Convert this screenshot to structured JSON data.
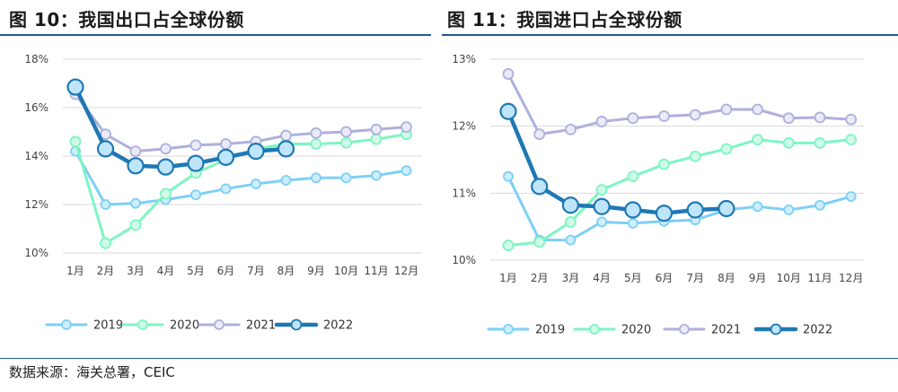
{
  "source": "数据来源：海关总署，CEIC",
  "colors": {
    "2019": "#7ecff5",
    "2020": "#7ef5c2",
    "2021": "#aeb0dc",
    "2022": "#1f78b4",
    "rule": "#1f5a99"
  },
  "chart_data": [
    {
      "type": "line",
      "title": "图 10：我国出口占全球份额",
      "categories": [
        "1月",
        "2月",
        "3月",
        "4月",
        "5月",
        "6月",
        "7月",
        "8月",
        "9月",
        "10月",
        "11月",
        "12月"
      ],
      "ylim": [
        10,
        18
      ],
      "yticks": [
        10,
        12,
        14,
        16,
        18
      ],
      "ytick_labels": [
        "10%",
        "12%",
        "14%",
        "16%",
        "18%"
      ],
      "grid": true,
      "legend": "bottom",
      "series": [
        {
          "name": "2019",
          "values": [
            14.2,
            12.0,
            12.05,
            12.2,
            12.4,
            12.65,
            12.85,
            13.0,
            13.1,
            13.1,
            13.2,
            13.4
          ]
        },
        {
          "name": "2020",
          "values": [
            14.6,
            10.4,
            11.15,
            12.45,
            13.3,
            13.85,
            14.3,
            14.5,
            14.5,
            14.55,
            14.7,
            14.9
          ]
        },
        {
          "name": "2021",
          "values": [
            16.55,
            14.9,
            14.2,
            14.3,
            14.45,
            14.5,
            14.6,
            14.85,
            14.95,
            15.0,
            15.1,
            15.2
          ]
        },
        {
          "name": "2022",
          "values": [
            16.85,
            14.3,
            13.6,
            13.55,
            13.7,
            13.95,
            14.2,
            14.3,
            null,
            null,
            null,
            null
          ]
        }
      ]
    },
    {
      "type": "line",
      "title": "图 11：我国进口占全球份额",
      "categories": [
        "1月",
        "2月",
        "3月",
        "4月",
        "5月",
        "6月",
        "7月",
        "8月",
        "9月",
        "10月",
        "11月",
        "12月"
      ],
      "ylim": [
        10,
        13
      ],
      "yticks": [
        10,
        11,
        12,
        13
      ],
      "ytick_labels": [
        "10%",
        "11%",
        "12%",
        "13%"
      ],
      "grid": true,
      "legend": "bottom",
      "series": [
        {
          "name": "2019",
          "values": [
            11.25,
            10.3,
            10.3,
            10.57,
            10.55,
            10.58,
            10.6,
            10.75,
            10.8,
            10.75,
            10.82,
            10.95
          ]
        },
        {
          "name": "2020",
          "values": [
            10.22,
            10.27,
            10.57,
            11.05,
            11.25,
            11.43,
            11.55,
            11.66,
            11.8,
            11.75,
            11.75,
            11.8
          ]
        },
        {
          "name": "2021",
          "values": [
            12.78,
            11.88,
            11.95,
            12.07,
            12.12,
            12.15,
            12.17,
            12.25,
            12.25,
            12.12,
            12.13,
            12.1
          ]
        },
        {
          "name": "2022",
          "values": [
            12.22,
            11.1,
            10.82,
            10.8,
            10.75,
            10.7,
            10.75,
            10.77,
            null,
            null,
            null,
            null
          ]
        }
      ]
    }
  ]
}
